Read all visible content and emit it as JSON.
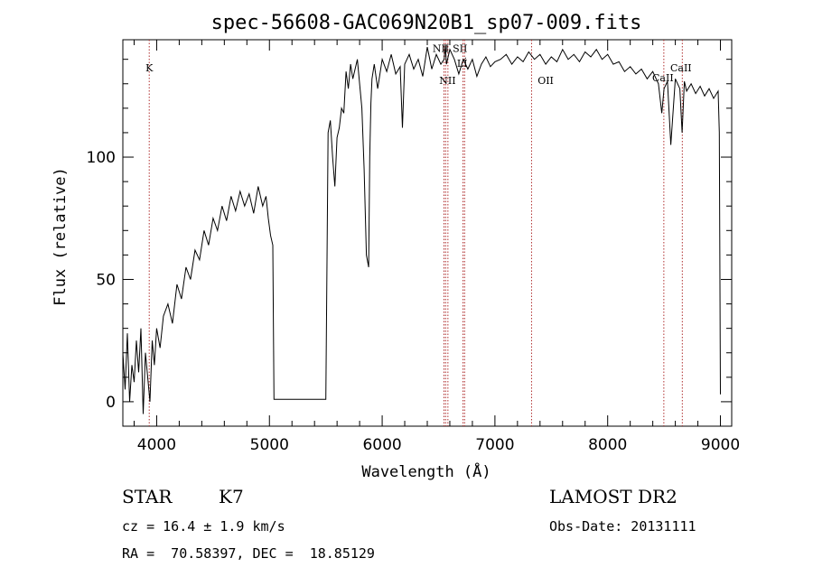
{
  "chart_data": {
    "type": "line",
    "title": "spec-56608-GAC069N20B1_sp07-009.fits",
    "xlabel": "Wavelength (Å)",
    "ylabel": "Flux (relative)",
    "xlim": [
      3700,
      9100
    ],
    "ylim": [
      -10,
      148
    ],
    "x_ticks": [
      4000,
      5000,
      6000,
      7000,
      8000,
      9000
    ],
    "y_ticks": [
      0,
      50,
      100
    ],
    "line_color": "#000000",
    "marker_color": "#b03030",
    "series": [
      {
        "x": [
          3700,
          3720,
          3740,
          3760,
          3780,
          3800,
          3820,
          3840,
          3860,
          3880,
          3900,
          3920,
          3940,
          3960,
          3980,
          4000,
          4030,
          4060,
          4100,
          4140,
          4180,
          4220,
          4260,
          4300,
          4340,
          4380,
          4420,
          4460,
          4500,
          4540,
          4580,
          4620,
          4660,
          4700,
          4740,
          4780,
          4820,
          4860,
          4900,
          4940,
          4970,
          4990,
          5010,
          5030,
          5040,
          5100,
          5200,
          5300,
          5400,
          5500,
          5520,
          5540,
          5560,
          5580,
          5600,
          5620,
          5640,
          5660,
          5680,
          5700,
          5720,
          5740,
          5760,
          5780,
          5800,
          5820,
          5840,
          5860,
          5880,
          5890,
          5900,
          5910,
          5930,
          5960,
          6000,
          6040,
          6080,
          6120,
          6160,
          6180,
          6200,
          6240,
          6280,
          6320,
          6360,
          6400,
          6440,
          6480,
          6520,
          6550,
          6560,
          6570,
          6600,
          6640,
          6680,
          6720,
          6760,
          6800,
          6840,
          6880,
          6920,
          6960,
          7000,
          7050,
          7100,
          7150,
          7200,
          7250,
          7300,
          7350,
          7400,
          7450,
          7500,
          7550,
          7600,
          7650,
          7700,
          7750,
          7800,
          7850,
          7900,
          7950,
          8000,
          8050,
          8100,
          8150,
          8200,
          8250,
          8300,
          8350,
          8400,
          8450,
          8480,
          8500,
          8530,
          8560,
          8600,
          8640,
          8660,
          8680,
          8700,
          8740,
          8780,
          8820,
          8860,
          8900,
          8940,
          8980,
          8990,
          9000
        ],
        "y": [
          20,
          5,
          28,
          0,
          15,
          8,
          25,
          12,
          30,
          -5,
          20,
          10,
          0,
          25,
          15,
          30,
          22,
          35,
          40,
          32,
          48,
          42,
          55,
          50,
          62,
          58,
          70,
          64,
          75,
          70,
          80,
          74,
          84,
          78,
          86,
          80,
          85,
          77,
          88,
          80,
          84,
          75,
          68,
          64,
          1,
          1,
          1,
          1,
          1,
          1,
          110,
          115,
          100,
          88,
          108,
          112,
          120,
          118,
          135,
          128,
          138,
          132,
          136,
          140,
          130,
          120,
          95,
          60,
          55,
          100,
          122,
          132,
          138,
          128,
          140,
          135,
          142,
          134,
          137,
          112,
          138,
          142,
          136,
          140,
          133,
          145,
          136,
          142,
          138,
          140,
          146,
          138,
          144,
          140,
          134,
          140,
          136,
          140,
          133,
          138,
          141,
          137,
          139,
          140,
          142,
          138,
          141,
          139,
          143,
          140,
          142,
          138,
          141,
          139,
          144,
          140,
          142,
          139,
          143,
          141,
          144,
          140,
          142,
          138,
          139,
          135,
          137,
          134,
          136,
          132,
          135,
          130,
          118,
          128,
          131,
          105,
          132,
          128,
          110,
          131,
          127,
          130,
          126,
          129,
          125,
          128,
          124,
          127,
          110,
          3
        ]
      }
    ],
    "lines": [
      {
        "name": "K",
        "x": 3934
      },
      {
        "name": "NII",
        "x": 6548
      },
      {
        "name": "Hα",
        "x": 6563
      },
      {
        "name": "NII",
        "x": 6583
      },
      {
        "name": "SII",
        "x": 6717
      },
      {
        "name": "SII",
        "x": 6731
      },
      {
        "name": "OII",
        "x": 7325
      },
      {
        "name": "CaII",
        "x": 8498
      },
      {
        "name": "CaII",
        "x": 8662
      }
    ],
    "line_labels": [
      {
        "text": "K",
        "x": 3934,
        "y": 135
      },
      {
        "text": "NII",
        "x": 6520,
        "y": 143
      },
      {
        "text": "SII",
        "x": 6690,
        "y": 143
      },
      {
        "text": "Lİ",
        "x": 6710,
        "y": 137
      },
      {
        "text": "NII",
        "x": 6580,
        "y": 130
      },
      {
        "text": "OII",
        "x": 7450,
        "y": 130
      },
      {
        "text": "CaII",
        "x": 8650,
        "y": 135
      },
      {
        "text": "CaII",
        "x": 8490,
        "y": 131
      }
    ]
  },
  "footer": {
    "class_label": "STAR",
    "subclass": "K7",
    "survey": "LAMOST DR2",
    "cz": "cz = 16.4 ± 1.9 km/s",
    "obs_date": "Obs-Date: 20131111",
    "coords": "RA =  70.58397, DEC =  18.85129"
  }
}
